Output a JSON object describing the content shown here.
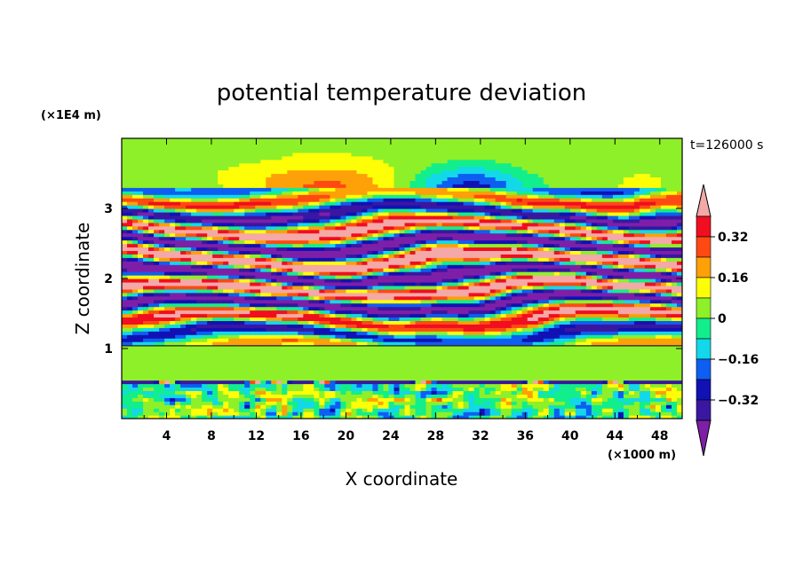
{
  "chart_data": {
    "type": "heatmap",
    "title": "potential temperature deviation",
    "xlabel": "X coordinate",
    "ylabel": "Z coordinate",
    "x_unit": "(×1000 m)",
    "y_unit": "(×1E4 m)",
    "time_label": "t=126000 s",
    "xlim": [
      0,
      50
    ],
    "ylim": [
      0,
      4
    ],
    "x_ticks": [
      4,
      8,
      12,
      16,
      20,
      24,
      28,
      32,
      36,
      40,
      44,
      48
    ],
    "x_tick_labels": [
      "4",
      "8",
      "12",
      "16",
      "20",
      "24",
      "28",
      "32",
      "36",
      "40",
      "44",
      "48"
    ],
    "y_ticks": [
      1,
      2,
      3
    ],
    "y_tick_labels": [
      "1",
      "2",
      "3"
    ],
    "colorbar": {
      "levels": [
        -0.4,
        -0.32,
        -0.24,
        -0.16,
        -0.08,
        0,
        0.08,
        0.16,
        0.24,
        0.32,
        0.4
      ],
      "tick_values": [
        -0.32,
        -0.16,
        0,
        0.16,
        0.32
      ],
      "tick_labels": [
        "−0.32",
        "−0.16",
        "0",
        "0.16",
        "0.32"
      ],
      "colors": [
        "#7e1fa8",
        "#3a17a0",
        "#1211b4",
        "#0e5ef2",
        "#12d8ea",
        "#12ee8c",
        "#8ef028",
        "#fefe06",
        "#fea008",
        "#fe4a12",
        "#f00e20",
        "#f4a8a8"
      ],
      "extend": "both"
    },
    "regions": [
      {
        "kind": "upper_layers",
        "z_range": [
          1.05,
          3.3
        ],
        "pattern": "alternating positive and negative horizontal bands"
      },
      {
        "kind": "dome_positive",
        "x_center": 18,
        "z_center": 3.3,
        "value": 0.2
      },
      {
        "kind": "dome_negative",
        "x_center": 31,
        "z_center": 3.3,
        "value": -0.3
      },
      {
        "kind": "boundary_layer",
        "z_range": [
          0,
          0.55
        ],
        "pattern": "turbulent mixed anomalies"
      }
    ]
  }
}
